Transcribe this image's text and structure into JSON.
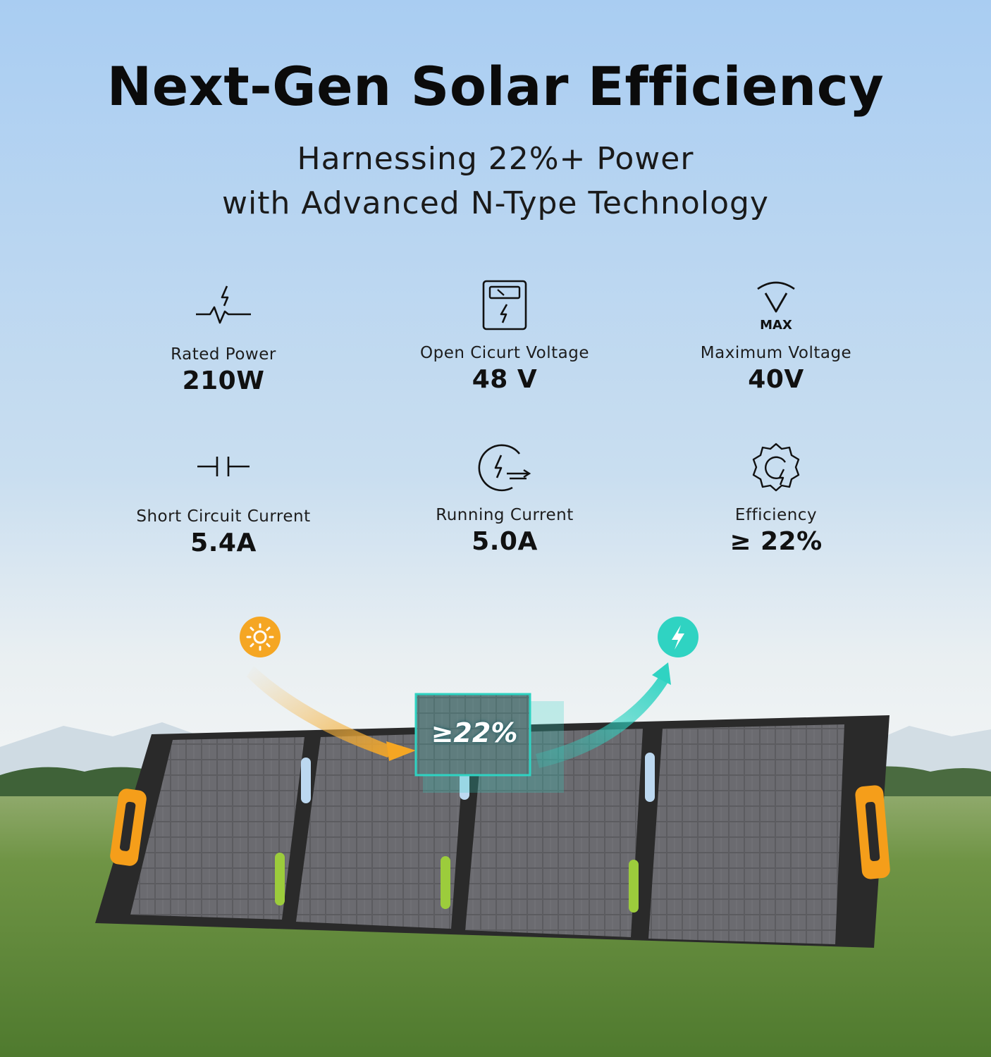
{
  "headline": "Next-Gen Solar Efficiency",
  "subheadline": {
    "line1": "Harnessing 22%+ Power",
    "line2": "with Advanced N-Type Technology"
  },
  "specs": [
    {
      "icon": "power-pulse-icon",
      "label": "Rated Power",
      "value": "210W"
    },
    {
      "icon": "voltage-meter-icon",
      "label": "Open Cicurt Voltage",
      "value": "48 V"
    },
    {
      "icon": "max-voltage-icon",
      "label": "Maximum Voltage",
      "value": "40V",
      "icon_text": "MAX"
    },
    {
      "icon": "capacitor-icon",
      "label": "Short Circuit Current",
      "value": "5.4A"
    },
    {
      "icon": "running-current-icon",
      "label": "Running Current",
      "value": "5.0A"
    },
    {
      "icon": "efficiency-gear-icon",
      "label": "Efficiency",
      "value": "≥ 22%"
    }
  ],
  "illustration": {
    "efficiency_badge": "≥22%",
    "sun_icon": "sun-icon",
    "energy_icon": "lightning-icon",
    "colors": {
      "sun": "#f5a623",
      "energy": "#2fd3c2",
      "handle": "#f59e1a",
      "panel_frame": "#2a2a2a",
      "sky_top": "#a9cdf2",
      "grass": "#5f8a3a"
    }
  }
}
